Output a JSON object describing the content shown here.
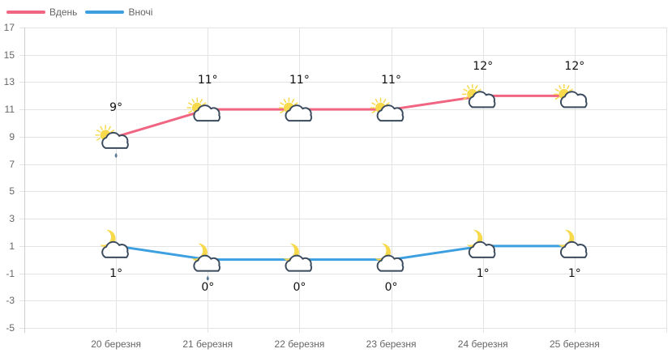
{
  "legend": {
    "items": [
      {
        "label": "Вдень",
        "color": "#f06582"
      },
      {
        "label": "Вночі",
        "color": "#3c9fe0"
      }
    ]
  },
  "chart_data": {
    "type": "line",
    "title": "",
    "xlabel": "",
    "ylabel": "",
    "categories": [
      "20 березня",
      "21 березня",
      "22 березня",
      "23 березня",
      "24 березня",
      "25 березня"
    ],
    "series": [
      {
        "name": "Вдень",
        "color": "#f06582",
        "values": [
          9,
          11,
          11,
          11,
          12,
          12
        ],
        "labels": [
          "9°",
          "11°",
          "11°",
          "11°",
          "12°",
          "12°"
        ],
        "icons": [
          "partly-cloudy-day-rain",
          "partly-cloudy-day",
          "partly-cloudy-day",
          "partly-cloudy-day",
          "partly-cloudy-day",
          "partly-cloudy-day"
        ]
      },
      {
        "name": "Вночі",
        "color": "#3c9fe0",
        "values": [
          1,
          0,
          0,
          0,
          1,
          1
        ],
        "labels": [
          "1°",
          "0°",
          "0°",
          "0°",
          "1°",
          "1°"
        ],
        "icons": [
          "partly-cloudy-night",
          "partly-cloudy-night-rain",
          "partly-cloudy-night",
          "partly-cloudy-night",
          "partly-cloudy-night",
          "partly-cloudy-night"
        ]
      }
    ],
    "ylim": [
      -5,
      17
    ],
    "yticks": [
      "17",
      "15",
      "13",
      "11",
      "9",
      "7",
      "5",
      "3",
      "1",
      "-1",
      "-3",
      "-5"
    ],
    "grid": true,
    "legend_position": "top-left"
  }
}
